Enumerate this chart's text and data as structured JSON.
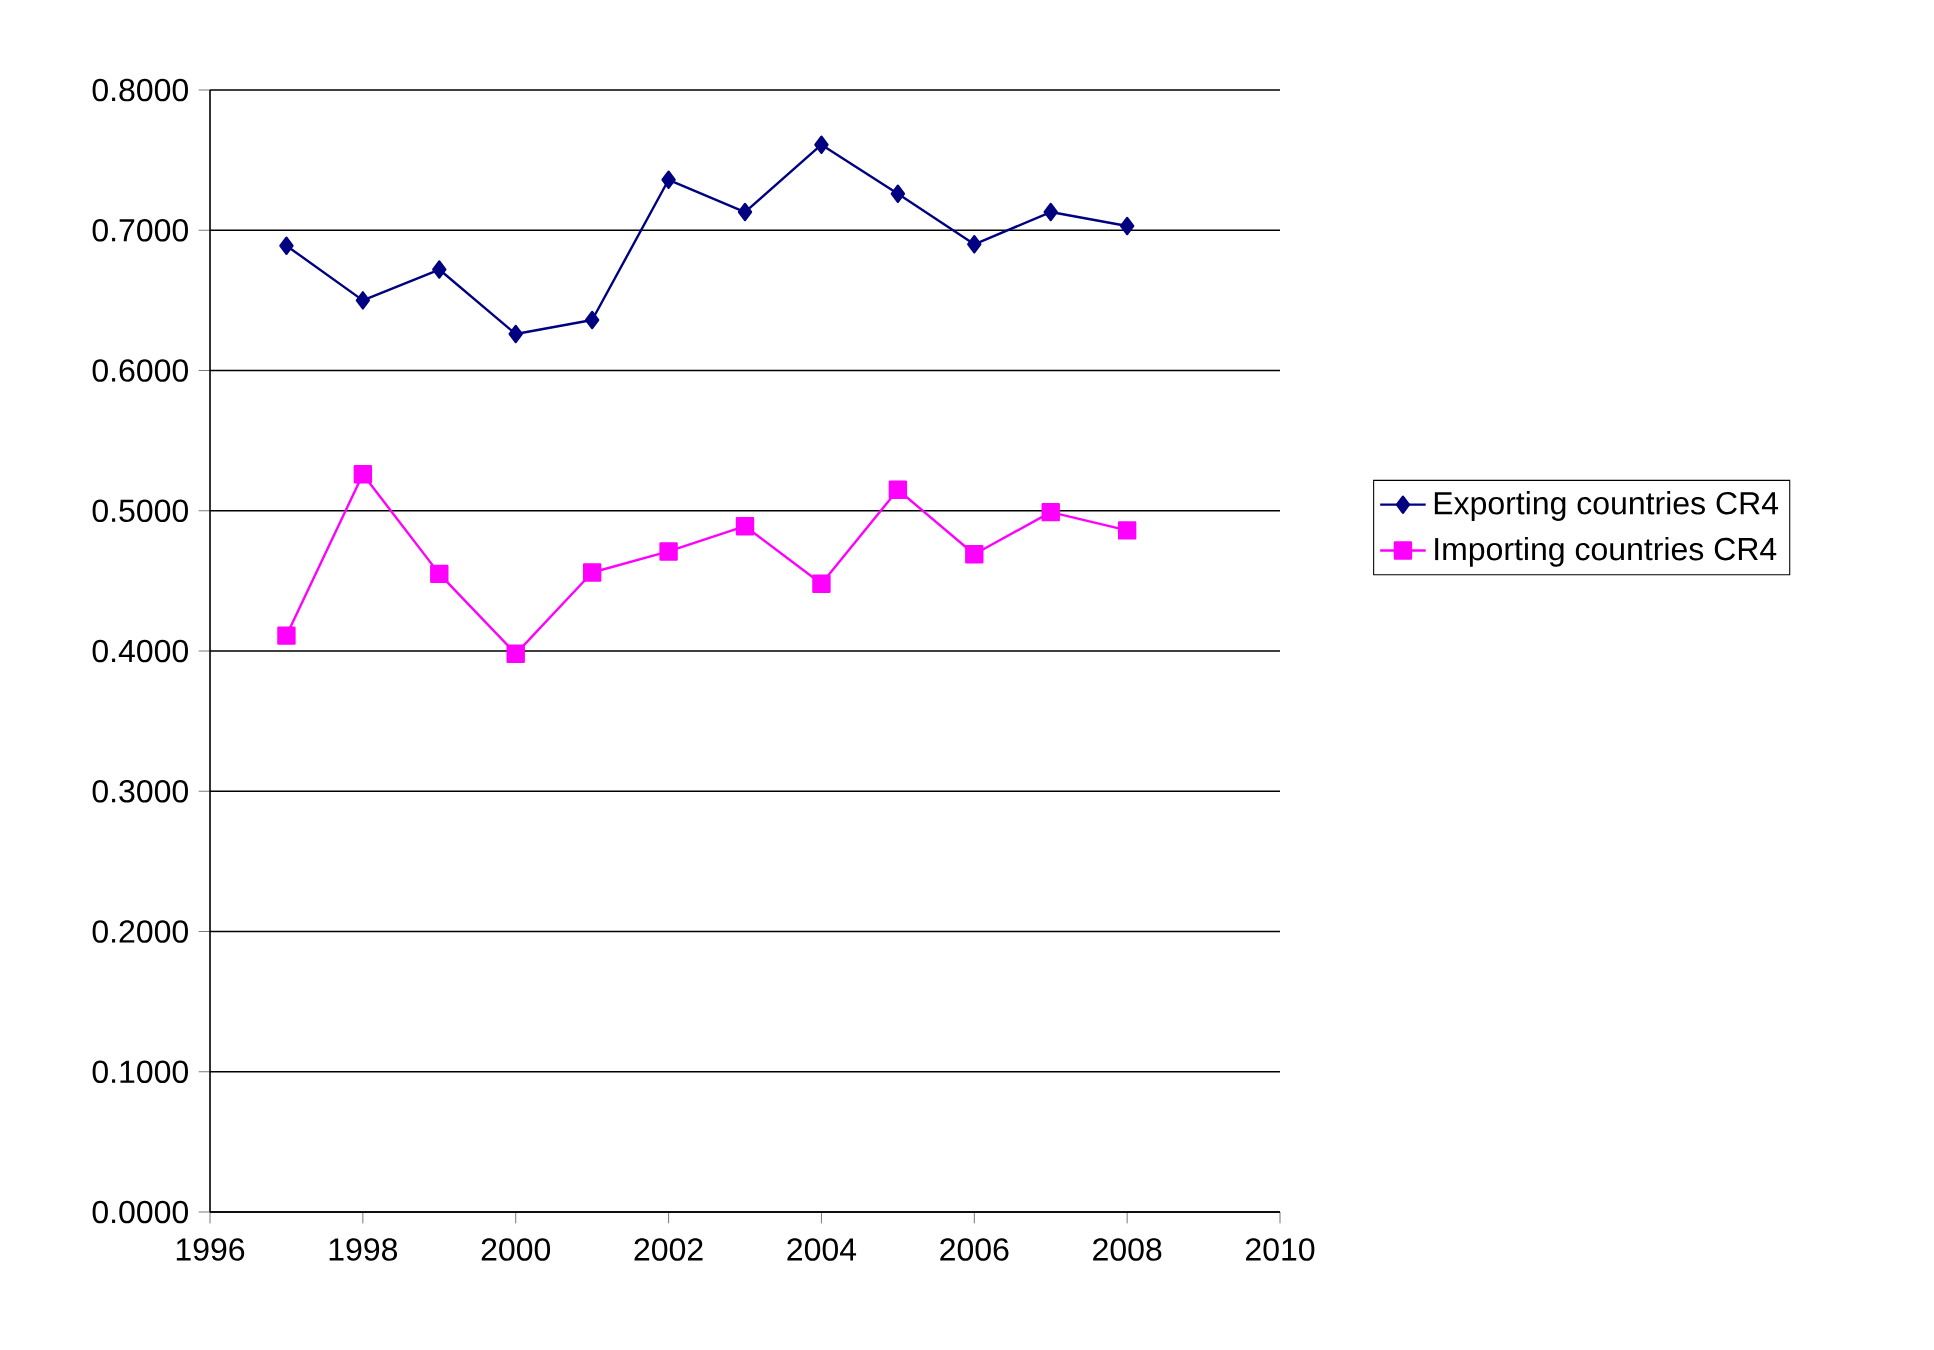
{
  "chart_data": {
    "type": "line",
    "x": [
      1997,
      1998,
      1999,
      2000,
      2001,
      2002,
      2003,
      2004,
      2005,
      2006,
      2007,
      2008
    ],
    "series": [
      {
        "name": "Exporting countries CR4",
        "color": "#000080",
        "marker": "diamond",
        "values": [
          0.689,
          0.65,
          0.672,
          0.626,
          0.636,
          0.736,
          0.713,
          0.761,
          0.726,
          0.69,
          0.713,
          0.703
        ]
      },
      {
        "name": "Importing countries CR4",
        "color": "#ff00ff",
        "marker": "square",
        "values": [
          0.411,
          0.526,
          0.455,
          0.398,
          0.456,
          0.471,
          0.489,
          0.448,
          0.515,
          0.469,
          0.499,
          0.486
        ]
      }
    ],
    "xlim": [
      1996,
      2010
    ],
    "xticks": [
      1996,
      1998,
      2000,
      2002,
      2004,
      2006,
      2008,
      2010
    ],
    "ylim": [
      0,
      0.8
    ],
    "yticks": [
      {
        "value": 0,
        "label": "0.0000"
      },
      {
        "value": 0.1,
        "label": "0.1000"
      },
      {
        "value": 0.2,
        "label": "0.2000"
      },
      {
        "value": 0.3,
        "label": "0.3000"
      },
      {
        "value": 0.4,
        "label": "0.4000"
      },
      {
        "value": 0.5,
        "label": "0.5000"
      },
      {
        "value": 0.6,
        "label": "0.6000"
      },
      {
        "value": 0.7,
        "label": "0.7000"
      },
      {
        "value": 0.8,
        "label": "0.8000"
      }
    ],
    "grid": "y",
    "legend": "right",
    "line_style": "solid"
  }
}
